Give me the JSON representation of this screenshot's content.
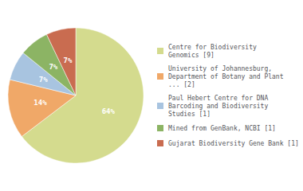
{
  "chart_data": {
    "type": "pie",
    "categories": [
      "Centre for Biodiversity\nGenomics [9]",
      "University of Johannesburg,\nDepartment of Botany and Plant\n... [2]",
      "Paul Hebert Centre for DNA\nBarcoding and Biodiversity\nStudies [1]",
      "Mined from GenBank, NCBI [1]",
      "Gujarat Biodiversity Gene Bank [1]"
    ],
    "values": [
      64,
      14,
      7,
      7,
      7
    ],
    "value_labels": [
      "64%",
      "14%",
      "7%",
      "7%",
      "7%"
    ],
    "colors": [
      "#d4db8e",
      "#f0a868",
      "#a8c4e0",
      "#8cb464",
      "#c96c50"
    ],
    "data_labels": true,
    "legend": "right"
  }
}
